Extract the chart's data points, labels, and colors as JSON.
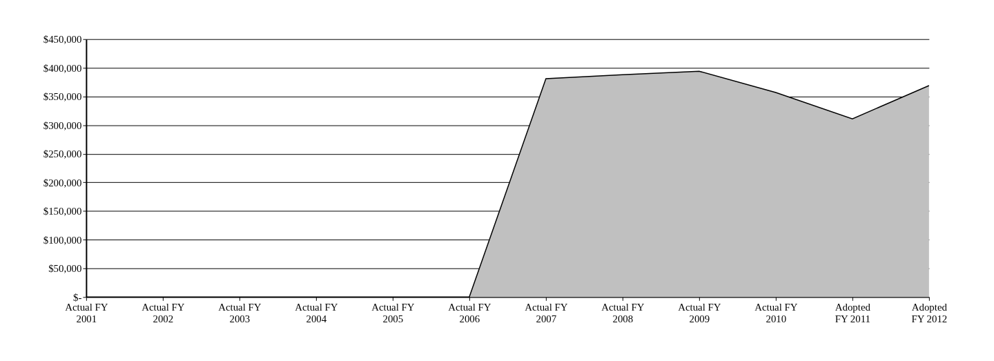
{
  "chart_data": {
    "type": "area",
    "categories": [
      "Actual FY\n2001",
      "Actual FY\n2002",
      "Actual FY\n2003",
      "Actual FY\n2004",
      "Actual FY\n2005",
      "Actual FY\n2006",
      "Actual FY\n2007",
      "Actual FY\n2008",
      "Actual FY\n2009",
      "Actual FY\n2010",
      "Adopted\nFY 2011",
      "Adopted\nFY 2012"
    ],
    "series": [
      {
        "color": "#c0c0c0",
        "values": [
          0,
          0,
          0,
          0,
          0,
          0,
          381000,
          388000,
          394000,
          357000,
          311000,
          369000
        ]
      }
    ],
    "ylim": [
      0,
      450000
    ],
    "yticks": [
      {
        "value": 0,
        "label": "$-"
      },
      {
        "value": 50000,
        "label": "$50,000"
      },
      {
        "value": 100000,
        "label": "$100,000"
      },
      {
        "value": 150000,
        "label": "$150,000"
      },
      {
        "value": 200000,
        "label": "$200,000"
      },
      {
        "value": 250000,
        "label": "$250,000"
      },
      {
        "value": 300000,
        "label": "$300,000"
      },
      {
        "value": 350000,
        "label": "$350,000"
      },
      {
        "value": 400000,
        "label": "$400,000"
      },
      {
        "value": 450000,
        "label": "$450,000"
      }
    ],
    "grid": "y"
  }
}
